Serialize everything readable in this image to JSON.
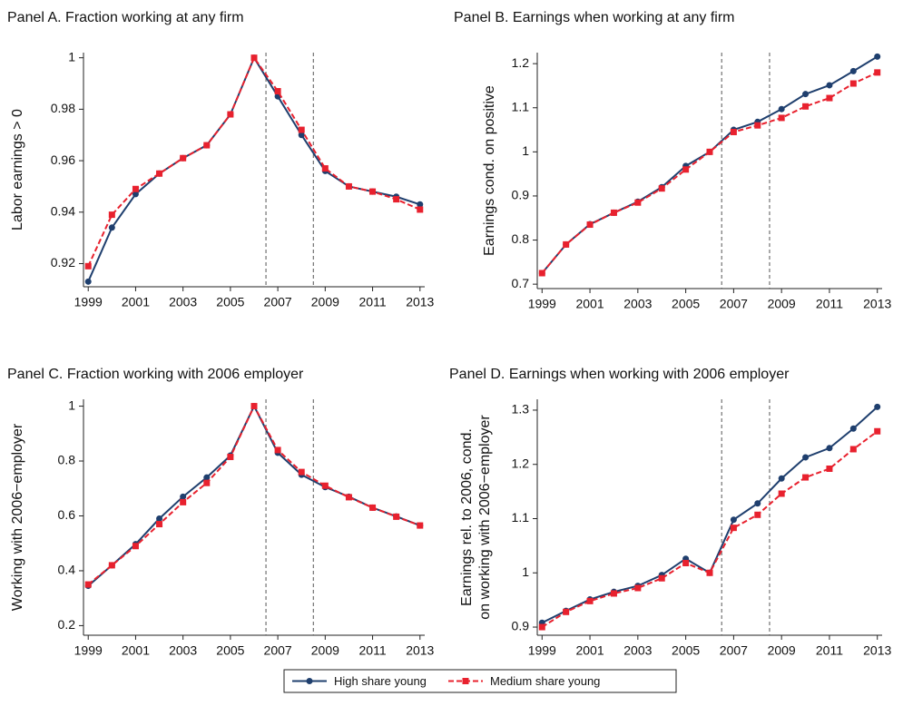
{
  "chart_data": [
    {
      "type": "line",
      "title": "Panel A. Fraction working at any firm",
      "ylabel": [
        "Labor earnings > 0"
      ],
      "x": [
        1999,
        2000,
        2001,
        2002,
        2003,
        2004,
        2005,
        2006,
        2007,
        2008,
        2009,
        2010,
        2011,
        2012,
        2013
      ],
      "series": [
        {
          "name": "High share young",
          "color": "#1f3f6e",
          "marker": "circle",
          "dashed": false,
          "values": [
            0.913,
            0.934,
            0.947,
            0.955,
            0.961,
            0.966,
            0.978,
            1.0,
            0.985,
            0.97,
            0.956,
            0.95,
            0.948,
            0.946,
            0.943
          ]
        },
        {
          "name": "Medium share young",
          "color": "#e8212e",
          "marker": "square",
          "dashed": true,
          "values": [
            0.919,
            0.939,
            0.949,
            0.955,
            0.961,
            0.966,
            0.978,
            1.0,
            0.987,
            0.972,
            0.957,
            0.95,
            0.948,
            0.945,
            0.941
          ]
        }
      ],
      "xlim": [
        1998.8,
        2013.2
      ],
      "xticks": [
        1999,
        2001,
        2003,
        2005,
        2007,
        2009,
        2011,
        2013
      ],
      "ylim": [
        0.911,
        1.002
      ],
      "yticks": [
        0.92,
        0.94,
        0.96,
        0.98,
        1
      ],
      "vlines": [
        2006.5,
        2008.5
      ]
    },
    {
      "type": "line",
      "title": "Panel B. Earnings when working at any firm",
      "ylabel": [
        "Earnings cond. on positive"
      ],
      "x": [
        1999,
        2000,
        2001,
        2002,
        2003,
        2004,
        2005,
        2006,
        2007,
        2008,
        2009,
        2010,
        2011,
        2012,
        2013
      ],
      "series": [
        {
          "color": "#1f3f6e",
          "marker": "circle",
          "dashed": false,
          "values": [
            0.725,
            0.79,
            0.836,
            0.862,
            0.887,
            0.92,
            0.968,
            1.0,
            1.05,
            1.068,
            1.097,
            1.131,
            1.151,
            1.183,
            1.216
          ]
        },
        {
          "color": "#e8212e",
          "marker": "square",
          "dashed": true,
          "values": [
            0.725,
            0.79,
            0.835,
            0.862,
            0.885,
            0.917,
            0.96,
            1.0,
            1.045,
            1.06,
            1.077,
            1.103,
            1.122,
            1.155,
            1.18
          ]
        }
      ],
      "xlim": [
        1998.8,
        2013.2
      ],
      "xticks": [
        1999,
        2001,
        2003,
        2005,
        2007,
        2009,
        2011,
        2013
      ],
      "ylim": [
        0.69,
        1.225
      ],
      "yticks": [
        0.7,
        0.8,
        0.9,
        1,
        1.1,
        1.2
      ],
      "vlines": [
        2006.5,
        2008.5
      ]
    },
    {
      "type": "line",
      "title": "Panel C. Fraction working with 2006 employer",
      "ylabel": [
        "Working with 2006−employer"
      ],
      "x": [
        1999,
        2000,
        2001,
        2002,
        2003,
        2004,
        2005,
        2006,
        2007,
        2008,
        2009,
        2010,
        2011,
        2012,
        2013
      ],
      "series": [
        {
          "color": "#1f3f6e",
          "marker": "circle",
          "dashed": false,
          "values": [
            0.345,
            0.42,
            0.497,
            0.59,
            0.67,
            0.74,
            0.82,
            1.0,
            0.83,
            0.75,
            0.705,
            0.67,
            0.63,
            0.598,
            0.565
          ]
        },
        {
          "color": "#e8212e",
          "marker": "square",
          "dashed": true,
          "values": [
            0.35,
            0.42,
            0.49,
            0.57,
            0.65,
            0.72,
            0.815,
            1.0,
            0.84,
            0.76,
            0.71,
            0.668,
            0.63,
            0.597,
            0.565
          ]
        }
      ],
      "xlim": [
        1998.8,
        2013.2
      ],
      "xticks": [
        1999,
        2001,
        2003,
        2005,
        2007,
        2009,
        2011,
        2013
      ],
      "ylim": [
        0.165,
        1.025
      ],
      "yticks": [
        0.2,
        0.4,
        0.6,
        0.8,
        1
      ],
      "vlines": [
        2006.5,
        2008.5
      ]
    },
    {
      "type": "line",
      "title": "Panel D. Earnings when working with 2006 employer",
      "ylabel": [
        "Earnings rel. to 2006, cond.",
        "on working with 2006−employer"
      ],
      "x": [
        1999,
        2000,
        2001,
        2002,
        2003,
        2004,
        2005,
        2006,
        2007,
        2008,
        2009,
        2010,
        2011,
        2012,
        2013
      ],
      "series": [
        {
          "color": "#1f3f6e",
          "marker": "circle",
          "dashed": false,
          "values": [
            0.908,
            0.93,
            0.951,
            0.965,
            0.976,
            0.996,
            1.026,
            1.0,
            1.098,
            1.128,
            1.174,
            1.213,
            1.23,
            1.266,
            1.306
          ]
        },
        {
          "color": "#e8212e",
          "marker": "square",
          "dashed": true,
          "values": [
            0.9,
            0.928,
            0.948,
            0.962,
            0.972,
            0.99,
            1.018,
            1.0,
            1.083,
            1.107,
            1.146,
            1.176,
            1.192,
            1.228,
            1.261
          ]
        }
      ],
      "xlim": [
        1998.8,
        2013.2
      ],
      "xticks": [
        1999,
        2001,
        2003,
        2005,
        2007,
        2009,
        2011,
        2013
      ],
      "ylim": [
        0.885,
        1.32
      ],
      "yticks": [
        0.9,
        1,
        1.1,
        1.2,
        1.3
      ],
      "vlines": [
        2006.5,
        2008.5
      ]
    }
  ]
}
